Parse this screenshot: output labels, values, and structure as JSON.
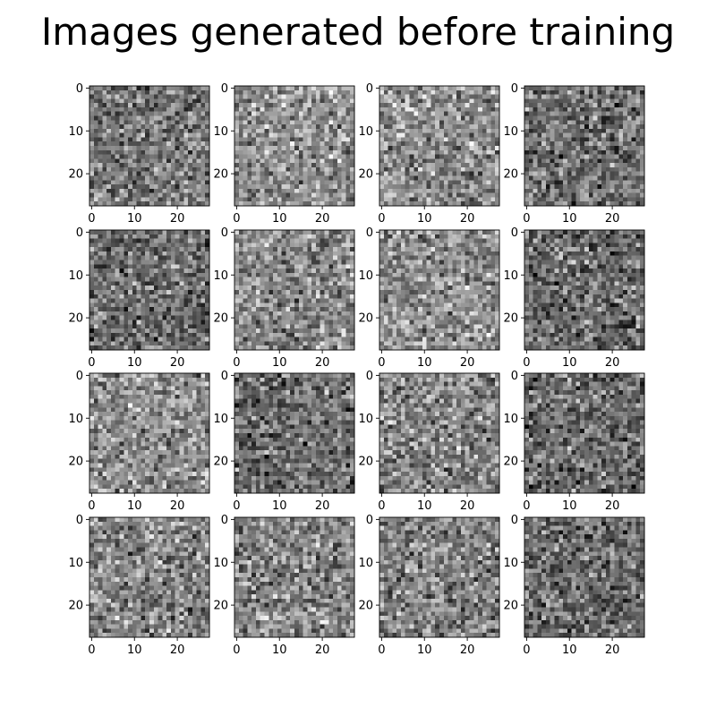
{
  "chart_data": {
    "type": "heatmap",
    "title": "Images generated before training",
    "colormap": "gray",
    "grid": false,
    "layout": {
      "rows": 4,
      "cols": 4
    },
    "image_size": [
      28,
      28
    ],
    "value_range": [
      0,
      1
    ],
    "xlim": [
      -0.5,
      27.5
    ],
    "ylim": [
      27.5,
      -0.5
    ],
    "x_ticks": [
      0,
      10,
      20
    ],
    "y_ticks": [
      0,
      10,
      20
    ],
    "x_tick_labels": [
      "0",
      "10",
      "20"
    ],
    "y_tick_labels": [
      "0",
      "10",
      "20"
    ],
    "panels": [
      {
        "id": 1,
        "row": 0,
        "col": 0,
        "mean_intensity": 0.47,
        "seed": 101
      },
      {
        "id": 2,
        "row": 0,
        "col": 1,
        "mean_intensity": 0.58,
        "seed": 202
      },
      {
        "id": 3,
        "row": 0,
        "col": 2,
        "mean_intensity": 0.56,
        "seed": 303
      },
      {
        "id": 4,
        "row": 0,
        "col": 3,
        "mean_intensity": 0.43,
        "seed": 404
      },
      {
        "id": 5,
        "row": 1,
        "col": 0,
        "mean_intensity": 0.42,
        "seed": 505
      },
      {
        "id": 6,
        "row": 1,
        "col": 1,
        "mean_intensity": 0.55,
        "seed": 606
      },
      {
        "id": 7,
        "row": 1,
        "col": 2,
        "mean_intensity": 0.57,
        "seed": 707
      },
      {
        "id": 8,
        "row": 1,
        "col": 3,
        "mean_intensity": 0.43,
        "seed": 808
      },
      {
        "id": 9,
        "row": 2,
        "col": 0,
        "mean_intensity": 0.56,
        "seed": 909
      },
      {
        "id": 10,
        "row": 2,
        "col": 1,
        "mean_intensity": 0.44,
        "seed": 1010
      },
      {
        "id": 11,
        "row": 2,
        "col": 2,
        "mean_intensity": 0.53,
        "seed": 1111
      },
      {
        "id": 12,
        "row": 2,
        "col": 3,
        "mean_intensity": 0.42,
        "seed": 1212
      },
      {
        "id": 13,
        "row": 3,
        "col": 0,
        "mean_intensity": 0.52,
        "seed": 1313
      },
      {
        "id": 14,
        "row": 3,
        "col": 1,
        "mean_intensity": 0.53,
        "seed": 1414
      },
      {
        "id": 15,
        "row": 3,
        "col": 2,
        "mean_intensity": 0.51,
        "seed": 1515
      },
      {
        "id": 16,
        "row": 3,
        "col": 3,
        "mean_intensity": 0.42,
        "seed": 1616
      }
    ]
  }
}
